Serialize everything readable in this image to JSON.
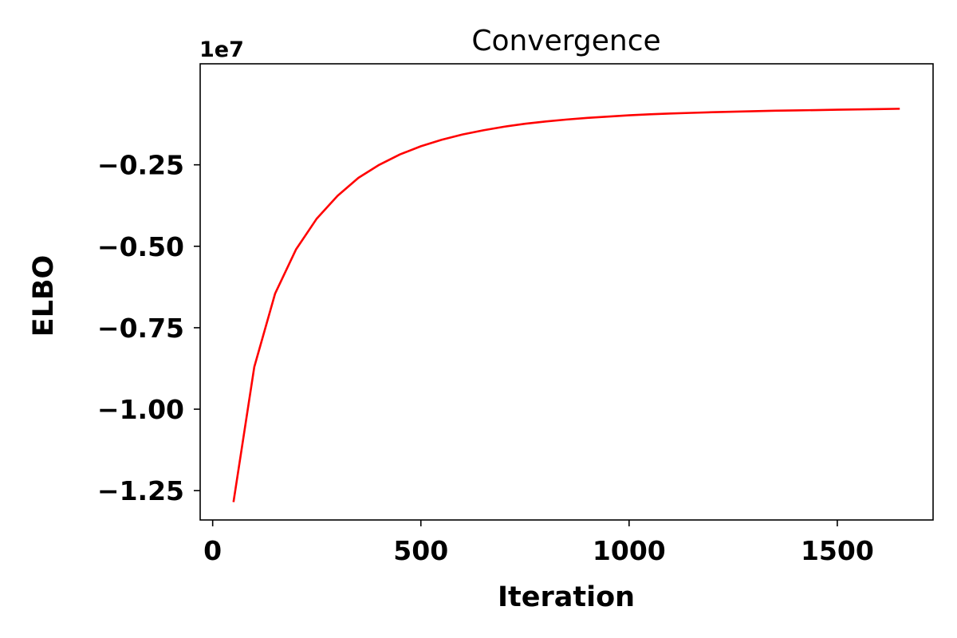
{
  "chart_data": {
    "type": "line",
    "title": "Convergence",
    "xlabel": "Iteration",
    "ylabel": "ELBO",
    "y_offset_label": "1e7",
    "y_scale_factor": 10000000,
    "xlim": [
      -30,
      1730
    ],
    "ylim": [
      -13.4,
      0.6
    ],
    "x_ticks": [
      0,
      500,
      1000,
      1500
    ],
    "x_tick_labels": [
      "0",
      "500",
      "1000",
      "1500"
    ],
    "y_ticks": [
      -12.5,
      -10.0,
      -7.5,
      -5.0,
      -2.5
    ],
    "y_tick_labels": [
      "−1.25",
      "−1.00",
      "−0.75",
      "−0.50",
      "−0.25"
    ],
    "grid": false,
    "series": [
      {
        "color": "#ff0000",
        "x": [
          50,
          100,
          150,
          200,
          250,
          300,
          350,
          400,
          450,
          500,
          550,
          600,
          650,
          700,
          750,
          800,
          850,
          900,
          950,
          1000,
          1050,
          1100,
          1150,
          1200,
          1250,
          1300,
          1350,
          1400,
          1450,
          1500,
          1550,
          1600,
          1650
        ],
        "y": [
          -12.85,
          -8.7,
          -6.45,
          -5.1,
          -4.15,
          -3.45,
          -2.9,
          -2.5,
          -2.18,
          -1.93,
          -1.73,
          -1.57,
          -1.44,
          -1.33,
          -1.24,
          -1.17,
          -1.11,
          -1.06,
          -1.02,
          -0.98,
          -0.95,
          -0.925,
          -0.905,
          -0.885,
          -0.87,
          -0.855,
          -0.84,
          -0.83,
          -0.82,
          -0.81,
          -0.8,
          -0.79,
          -0.78
        ]
      }
    ]
  }
}
